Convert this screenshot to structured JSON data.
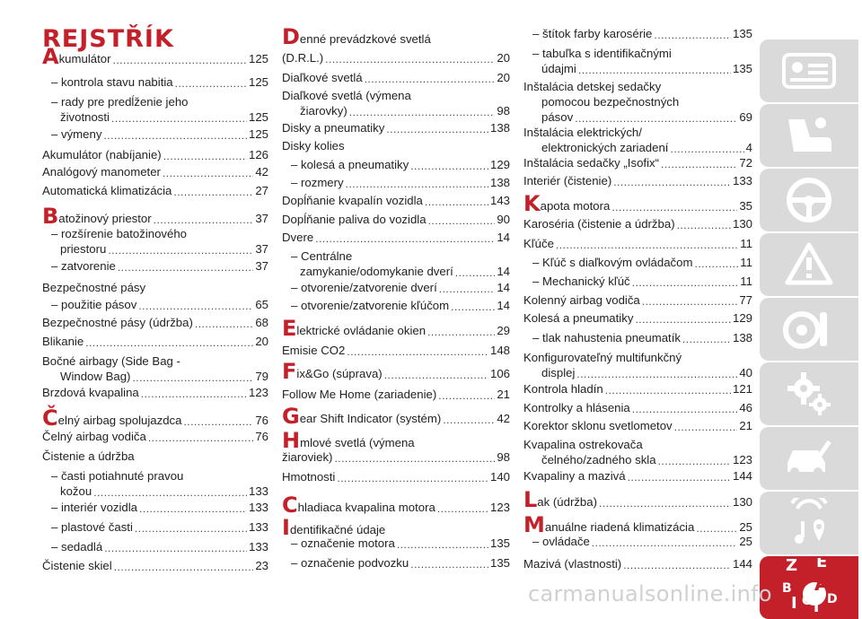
{
  "title": "REJSTŘÍK",
  "columns": [
    [
      {
        "cap": "A",
        "text": "kumulátor",
        "page": "125"
      },
      {
        "text": "– kontrola stavu nabitia",
        "page": "125"
      },
      {
        "text": "– rady pre predĺženie jeho",
        "text2": "životnosti",
        "page": "125"
      },
      {
        "text": "– výmeny",
        "page": "125"
      },
      {
        "text": "Akumulátor (nabíjanie)",
        "page": "126"
      },
      {
        "text": "Analógový manometer",
        "page": "42"
      },
      {
        "text": "Automatická klimatizácia",
        "page": "27"
      },
      {
        "cap": "B",
        "text": "atožinový priestor",
        "page": "37"
      },
      {
        "text": "– rozšírenie batožinového",
        "text2": "priestoru",
        "page": "37"
      },
      {
        "text": "– zatvorenie",
        "page": "37"
      },
      {
        "text": "Bezpečnostné pásy",
        "page": ""
      },
      {
        "text": "– použitie pásov",
        "page": "65"
      },
      {
        "text": "Bezpečnostné pásy (údržba)",
        "page": "68"
      },
      {
        "text": "Blikanie",
        "page": "20"
      },
      {
        "text": "Bočné airbagy (Side Bag -",
        "text2": "Window Bag)",
        "page": "79"
      },
      {
        "text": "Brzdová kvapalina",
        "page": "123"
      },
      {
        "cap": "Č",
        "text": "elný airbag spolujazdca",
        "page": "76"
      },
      {
        "text": "Čelný airbag vodiča",
        "page": "76"
      },
      {
        "text": "Čistenie a údržba",
        "page": ""
      },
      {
        "text": "– časti potiahnuté pravou",
        "text2": "kožou",
        "page": "133"
      },
      {
        "text": "– interiér vozidla",
        "page": "133"
      },
      {
        "text": "– plastové časti",
        "page": "133"
      },
      {
        "text": "– sedadlá",
        "page": "133"
      },
      {
        "text": "Čistenie skiel",
        "page": "23"
      }
    ],
    [
      {
        "cap": "D",
        "text": "enné prevádzkové svetlá",
        "page": ""
      },
      {
        "text": "(D.R.L.)",
        "page": "20"
      },
      {
        "text": "Diaľkové svetlá",
        "page": "20"
      },
      {
        "text": "Diaľkové svetlá (výmena",
        "text2": "žiarovky)",
        "page": "98"
      },
      {
        "text": "Disky a pneumatiky",
        "page": "138"
      },
      {
        "text": "Disky kolies",
        "page": ""
      },
      {
        "text": "– kolesá a pneumatiky",
        "page": "129"
      },
      {
        "text": "– rozmery",
        "page": "138"
      },
      {
        "text": "Dopĺňanie kvapalín vozidla",
        "page": "143"
      },
      {
        "text": "Dopĺňanie paliva do vozidla",
        "page": "90"
      },
      {
        "text": "Dvere",
        "page": "14"
      },
      {
        "text": "– Centrálne",
        "text2": "zamykanie/odomykanie dverí",
        "page": "14"
      },
      {
        "text": "– otvorenie/zatvorenie dverí",
        "page": "14"
      },
      {
        "text": "– otvorenie/zatvorenie kľúčom",
        "page": "14"
      },
      {
        "cap": "E",
        "text": "lektrické ovládanie okien",
        "page": "29"
      },
      {
        "text": "Emisie CO2",
        "page": "148"
      },
      {
        "cap": "F",
        "text": "ix&Go (súprava)",
        "page": "106"
      },
      {
        "text": "Follow Me Home (zariadenie)",
        "page": "21"
      },
      {
        "cap": "G",
        "text": "ear Shift Indicator (systém)",
        "page": "42"
      },
      {
        "cap": "H",
        "text": "mlové svetlá (výmena",
        "page": ""
      },
      {
        "text": "žiaroviek)",
        "page": "98"
      },
      {
        "text": "Hmotnosti",
        "page": "140"
      },
      {
        "cap": "C",
        "text": "hladiaca kvapalina motora",
        "page": "123"
      },
      {
        "cap": "I",
        "text": "dentifikačné údaje",
        "page": ""
      },
      {
        "text": "– označenie motora",
        "page": "135"
      },
      {
        "text": "– označenie podvozku",
        "page": "135"
      }
    ],
    [
      {
        "text": "– štítok farby karosérie",
        "page": "135"
      },
      {
        "text": "– tabuľka s identifikačnými",
        "text2": "údajmi",
        "page": "135"
      },
      {
        "text": "Inštalácia detskej sedačky",
        "text2": "pomocou bezpečnostných",
        "text3": "pásov",
        "page": "69"
      },
      {
        "text": "Inštalácia elektrických/",
        "text2": "elektronických zariadení",
        "page": "4"
      },
      {
        "text": "Inštalácia sedačky „Isofix“",
        "page": "72"
      },
      {
        "text": "Interiér (čistenie)",
        "page": "133"
      },
      {
        "cap": "K",
        "text": "apota motora",
        "page": "35"
      },
      {
        "text": "Karoséria (čistenie a údržba)",
        "page": "130"
      },
      {
        "text": "Kľúče",
        "page": "11"
      },
      {
        "text": "– Kľúč s diaľkovým ovládačom",
        "page": "11"
      },
      {
        "text": "– Mechanický kľúč",
        "page": "11"
      },
      {
        "text": "Kolenný airbag vodiča",
        "page": "77"
      },
      {
        "text": "Kolesá a pneumatiky",
        "page": "129"
      },
      {
        "text": "– tlak nahustenia pneumatík",
        "page": "138"
      },
      {
        "text": "Konfigurovateľný multifunkčný",
        "text2": "displej",
        "page": "40"
      },
      {
        "text": "Kontrola hladín",
        "page": "121"
      },
      {
        "text": "Kontrolky a hlásenia",
        "page": "46"
      },
      {
        "text": "Korektor sklonu svetlometov",
        "page": "21"
      },
      {
        "text": "Kvapalina ostrekovača",
        "text2": "čelného/zadného skla",
        "page": "123"
      },
      {
        "text": "Kvapaliny a mazivá",
        "page": "144"
      },
      {
        "cap": "L",
        "text": "ak (údržba)",
        "page": "130"
      },
      {
        "cap": "M",
        "text": "anuálne riadená klimatizácia",
        "page": "25"
      },
      {
        "text": "– ovládače",
        "page": "25"
      },
      {
        "text": "Mazivá (vlastnosti)",
        "page": "144"
      }
    ]
  ],
  "sidebar_tabs": [
    {
      "icon": "car-dashboard-icon"
    },
    {
      "icon": "car-seat-icon"
    },
    {
      "icon": "steering-wheel-icon"
    },
    {
      "icon": "warning-triangle-icon"
    },
    {
      "icon": "tire-service-icon"
    },
    {
      "icon": "gear-icon"
    },
    {
      "icon": "car-wrench-icon"
    },
    {
      "icon": "media-location-icon"
    },
    {
      "icon": "index-az-icon",
      "letters": [
        "Z",
        "E",
        "B",
        "A",
        "I",
        "C",
        "T",
        "D"
      ],
      "active": true
    }
  ],
  "colors": {
    "accent": "#c4202a",
    "tab": "#dadada",
    "icon": "#ffffff"
  },
  "watermark": "carmanualsonline.info"
}
